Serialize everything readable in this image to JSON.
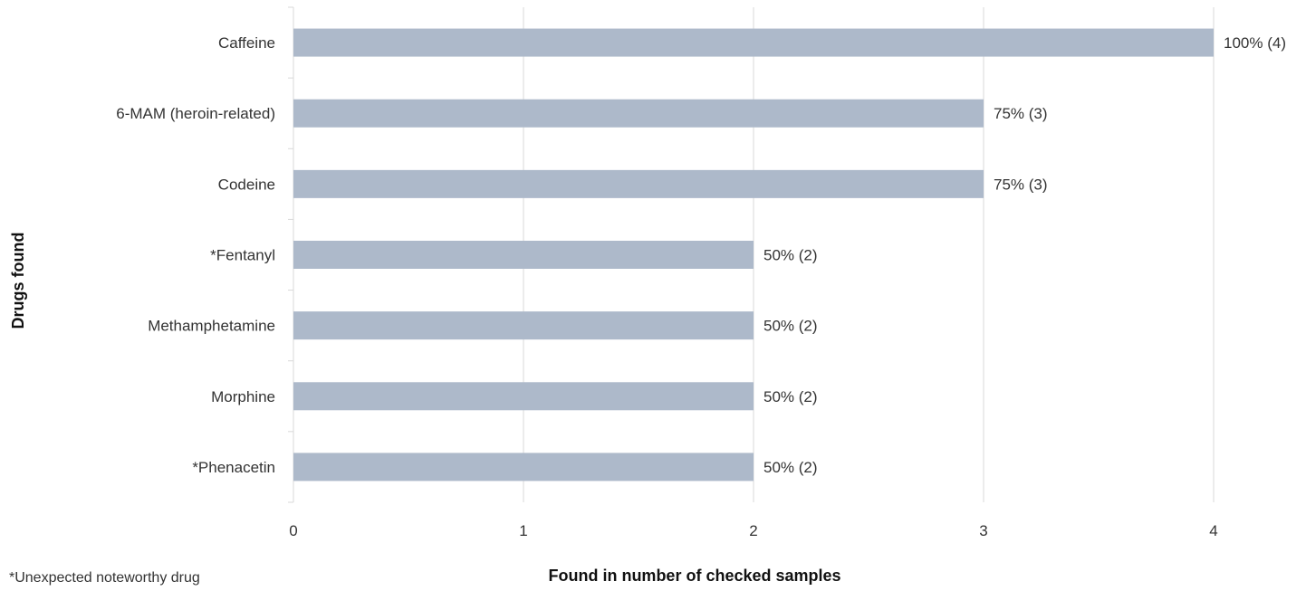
{
  "chart_data": {
    "type": "bar",
    "orientation": "horizontal",
    "categories": [
      "Caffeine",
      "6-MAM (heroin-related)",
      "Codeine",
      "*Fentanyl",
      "Methamphetamine",
      "Morphine",
      "*Phenacetin"
    ],
    "values": [
      4,
      3,
      3,
      2,
      2,
      2,
      2
    ],
    "data_labels": [
      "100% (4)",
      "75% (3)",
      "75% (3)",
      "50% (2)",
      "50% (2)",
      "50% (2)",
      "50% (2)"
    ],
    "xlabel": "Found in number of checked samples",
    "ylabel": "Drugs found",
    "xlim": [
      0,
      4
    ],
    "x_ticks": [
      "0",
      "1",
      "2",
      "3",
      "4"
    ],
    "grid": "vertical",
    "bar_color": "#adb9ca",
    "grid_color": "#d9d9d9",
    "footnote": "*Unexpected noteworthy drug"
  }
}
